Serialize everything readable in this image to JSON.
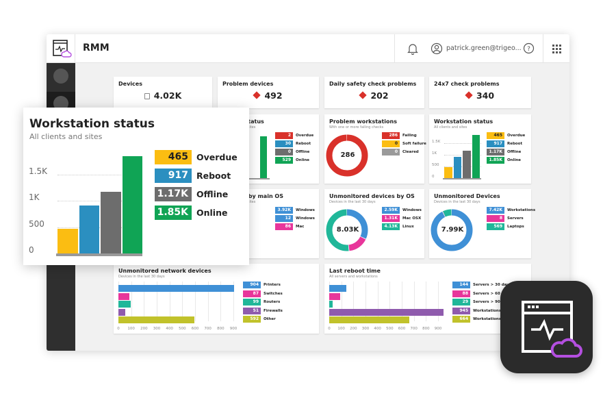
{
  "header": {
    "app_title": "RMM",
    "user": "patrick.green@trigeo...",
    "icons": [
      "app-logo-icon",
      "bell-icon",
      "user-icon",
      "help-icon",
      "apps-grid-icon"
    ]
  },
  "kpis": [
    {
      "label": "Devices",
      "value": "4.02K",
      "icon": "devices-icon"
    },
    {
      "label": "Problem devices",
      "value": "492",
      "icon": "alert-icon"
    },
    {
      "label": "Daily safety check problems",
      "value": "202",
      "icon": "alert-icon"
    },
    {
      "label": "24x7 check problems",
      "value": "340",
      "icon": "alert-icon"
    }
  ],
  "colors": {
    "red": "#d9312a",
    "yellow": "#fbbd12",
    "blue": "#2b8fc0",
    "gray": "#6d6d6d",
    "green": "#10a455",
    "lightblue": "#3f90d6",
    "pink": "#e8369b",
    "teal": "#20b799",
    "purple": "#8f5bad",
    "olive": "#c1c22b",
    "lightgray": "#9a9a9a"
  },
  "widgets": {
    "server_status": {
      "title": "Server status",
      "subtitle": "All clients and sites",
      "legend": [
        {
          "value": "2",
          "label": "Overdue",
          "color": "red"
        },
        {
          "value": "30",
          "label": "Reboot",
          "color": "blue"
        },
        {
          "value": "0",
          "label": "Offline",
          "color": "gray"
        },
        {
          "value": "529",
          "label": "Online",
          "color": "green"
        }
      ]
    },
    "main_os": {
      "title": "Devices by main OS",
      "subtitle": "All clients and sites",
      "legend": [
        {
          "value": "3.92K",
          "label": "Windows",
          "color": "lightblue"
        },
        {
          "value": "12",
          "label": "Windows",
          "color": "lightblue"
        },
        {
          "value": "86",
          "label": "Mac",
          "color": "pink"
        }
      ]
    },
    "problem_workstations": {
      "title": "Problem workstations",
      "subtitle": "With one or more failing checks",
      "center": "286",
      "legend": [
        {
          "value": "286",
          "label": "Failing",
          "color": "red"
        },
        {
          "value": "0",
          "label": "Soft failure",
          "color": "yellow"
        },
        {
          "value": "0",
          "label": "Cleared",
          "color": "lightgray"
        }
      ],
      "slices": [
        286,
        0,
        0
      ]
    },
    "workstation_status": {
      "title": "Workstation status",
      "subtitle": "All clients and sites",
      "yticks": [
        "1.5K",
        "1K",
        "500",
        "0"
      ],
      "values": [
        465,
        917,
        1170,
        1850
      ],
      "legend": [
        {
          "value": "465",
          "label": "Overdue",
          "color": "yellow"
        },
        {
          "value": "917",
          "label": "Reboot",
          "color": "blue"
        },
        {
          "value": "1.17K",
          "label": "Offline",
          "color": "gray"
        },
        {
          "value": "1.85K",
          "label": "Online",
          "color": "green"
        }
      ]
    },
    "unmonitored_os": {
      "title": "Unmonitored devices by OS",
      "subtitle": "Devices in the last 30 days",
      "center": "8.03K",
      "slices": [
        2590,
        1310,
        4130
      ],
      "legend": [
        {
          "value": "2.59K",
          "label": "Windows",
          "color": "lightblue"
        },
        {
          "value": "1.31K",
          "label": "Mac OSX",
          "color": "pink"
        },
        {
          "value": "4.13K",
          "label": "Linux",
          "color": "teal"
        }
      ]
    },
    "unmonitored_devices": {
      "title": "Unmonitored Devices",
      "subtitle": "Devices in the last 30 days",
      "center": "7.99K",
      "slices": [
        7420,
        8,
        569
      ],
      "legend": [
        {
          "value": "7.42K",
          "label": "Workstations",
          "color": "lightblue"
        },
        {
          "value": "8",
          "label": "Servers",
          "color": "pink"
        },
        {
          "value": "569",
          "label": "Laptops",
          "color": "teal"
        }
      ]
    },
    "network_devices": {
      "title": "Unmonitored network devices",
      "subtitle": "Devices in the last 30 days",
      "values": [
        904,
        87,
        99,
        51,
        592
      ],
      "xticks": [
        "0",
        "100",
        "200",
        "300",
        "400",
        "500",
        "600",
        "700",
        "800",
        "900"
      ],
      "legend": [
        {
          "value": "904",
          "label": "Printers",
          "color": "lightblue"
        },
        {
          "value": "87",
          "label": "Switches",
          "color": "pink"
        },
        {
          "value": "99",
          "label": "Routers",
          "color": "teal"
        },
        {
          "value": "51",
          "label": "Firewalls",
          "color": "purple"
        },
        {
          "value": "592",
          "label": "Other",
          "color": "olive"
        }
      ]
    },
    "last_reboot": {
      "title": "Last reboot time",
      "subtitle": "All servers and workstations",
      "values": [
        144,
        88,
        29,
        945,
        664
      ],
      "xticks": [
        "0",
        "100",
        "200",
        "300",
        "400",
        "500",
        "600",
        "700",
        "800",
        "900"
      ],
      "legend": [
        {
          "value": "144",
          "label": "Servers > 30 days",
          "color": "lightblue"
        },
        {
          "value": "88",
          "label": "Servers > 60 days",
          "color": "pink"
        },
        {
          "value": "29",
          "label": "Servers > 90 days",
          "color": "teal"
        },
        {
          "value": "945",
          "label": "Workstations > 60 days",
          "color": "purple"
        },
        {
          "value": "664",
          "label": "Workstations > 90 days",
          "color": "olive"
        }
      ]
    }
  },
  "overlay": {
    "title": "Workstation status",
    "subtitle": "All clients and sites",
    "yticks": [
      "1.5K",
      "1K",
      "500",
      "0"
    ],
    "values": [
      465,
      917,
      1170,
      1850
    ],
    "legend": [
      {
        "value": "465",
        "label": "Overdue",
        "color": "yellow"
      },
      {
        "value": "917",
        "label": "Reboot",
        "color": "blue"
      },
      {
        "value": "1.17K",
        "label": "Offline",
        "color": "gray"
      },
      {
        "value": "1.85K",
        "label": "Online",
        "color": "green"
      }
    ]
  }
}
